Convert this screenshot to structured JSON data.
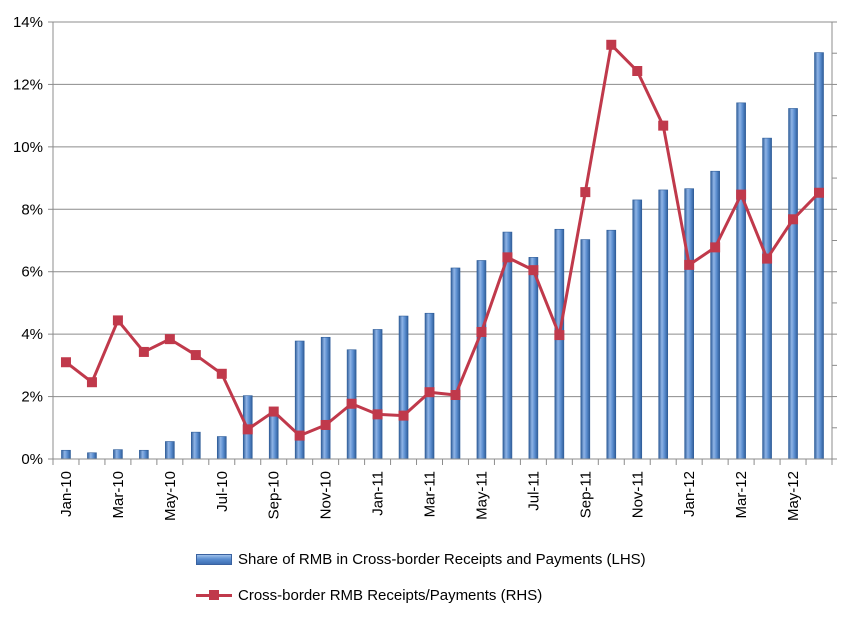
{
  "chart_data": {
    "type": "bar",
    "categories": [
      "Jan-10",
      "Feb-10",
      "Mar-10",
      "Apr-10",
      "May-10",
      "Jun-10",
      "Jul-10",
      "Aug-10",
      "Sep-10",
      "Oct-10",
      "Nov-10",
      "Dec-10",
      "Jan-11",
      "Feb-11",
      "Mar-11",
      "Apr-11",
      "May-11",
      "Jun-11",
      "Jul-11",
      "Aug-11",
      "Sep-11",
      "Oct-11",
      "Nov-11",
      "Dec-11",
      "Jan-12",
      "Feb-12",
      "Mar-12",
      "Apr-12",
      "May-12",
      "Jun-12"
    ],
    "x_tick_labels": [
      "Jan-10",
      "Mar-10",
      "May-10",
      "Jul-10",
      "Sep-10",
      "Nov-10",
      "Jan-11",
      "Mar-11",
      "May-11",
      "Jul-11",
      "Sep-11",
      "Nov-11",
      "Jan-12",
      "Mar-12",
      "May-12"
    ],
    "y_ticks": [
      "0%",
      "2%",
      "4%",
      "6%",
      "8%",
      "10%",
      "12%",
      "14%"
    ],
    "ylim": [
      0,
      14
    ],
    "grid": true,
    "legend_position": "bottom",
    "series": [
      {
        "name": "Share of RMB in Cross-border Receipts and Payments (LHS)",
        "type": "bar",
        "axis": "left",
        "values": [
          0.28,
          0.2,
          0.3,
          0.28,
          0.56,
          0.86,
          0.72,
          2.03,
          1.49,
          3.78,
          3.9,
          3.5,
          4.15,
          4.58,
          4.67,
          6.12,
          6.36,
          7.27,
          6.46,
          7.36,
          7.03,
          7.33,
          8.3,
          8.62,
          8.66,
          9.22,
          11.41,
          10.28,
          11.23,
          13.02
        ],
        "color": "#4f81bd"
      },
      {
        "name": "Cross-border RMB Receipts/Payments (RHS)",
        "type": "line",
        "axis": "right",
        "values": [
          3.1,
          2.46,
          4.44,
          3.43,
          3.84,
          3.33,
          2.73,
          0.95,
          1.52,
          0.75,
          1.09,
          1.77,
          1.43,
          1.39,
          2.14,
          2.05,
          4.07,
          6.46,
          6.05,
          3.97,
          8.55,
          13.27,
          12.43,
          10.68,
          6.22,
          6.78,
          8.47,
          6.42,
          7.68,
          8.53
        ],
        "color": "#c0394b"
      }
    ]
  }
}
